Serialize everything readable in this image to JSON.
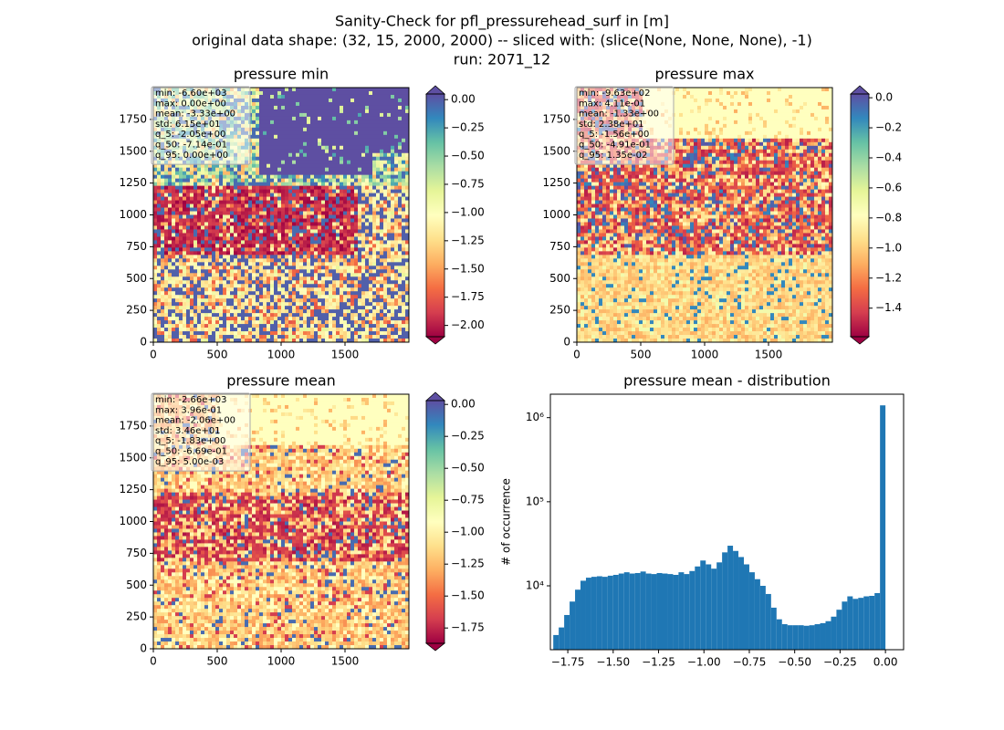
{
  "figure": {
    "title": [
      "Sanity-Check for pfl_pressurehead_surf in [m]",
      "original data shape: (32, 15, 2000, 2000) -- sliced with: (slice(None, None, None), -1)",
      "run: 2071_12"
    ]
  },
  "chart_data": [
    {
      "type": "heatmap",
      "title": "pressure min",
      "xlim": [
        0,
        2000
      ],
      "ylim": [
        0,
        2000
      ],
      "xticks": [
        0,
        500,
        1000,
        1500
      ],
      "yticks": [
        0,
        250,
        500,
        750,
        1000,
        1250,
        1500,
        1750
      ],
      "stats": [
        "min: -6.60e+03",
        "max: 0.00e+00",
        "mean: -3.33e+00",
        "std: 6.15e+01",
        "q_5: -2.05e+00",
        "q_50: -7.14e-01",
        "q_95: 0.00e+00"
      ],
      "colorbar": {
        "cmap": "Spectral",
        "clim": [
          -2.1,
          0.05
        ],
        "extend": "both",
        "ticks": [
          {
            "value": 0,
            "label": "0.00"
          },
          {
            "value": -0.25,
            "label": "−0.25"
          },
          {
            "value": -0.5,
            "label": "−0.50"
          },
          {
            "value": -0.75,
            "label": "−0.75"
          },
          {
            "value": -1,
            "label": "−1.00"
          },
          {
            "value": -1.25,
            "label": "−1.25"
          },
          {
            "value": -1.5,
            "label": "−1.50"
          },
          {
            "value": -1.75,
            "label": "−1.75"
          },
          {
            "value": -2,
            "label": "−2.00"
          }
        ]
      }
    },
    {
      "type": "heatmap",
      "title": "pressure max",
      "xlim": [
        0,
        2000
      ],
      "ylim": [
        0,
        2000
      ],
      "xticks": [
        0,
        500,
        1000,
        1500
      ],
      "yticks": [
        0,
        250,
        500,
        750,
        1000,
        1250,
        1500,
        1750
      ],
      "stats": [
        "min: -9.63e+02",
        "max: 4.11e-01",
        "mean: -1.33e+00",
        "std: 2.38e+01",
        "q_5: -1.56e+00",
        "q_50: -4.91e-01",
        "q_95: 1.35e-02"
      ],
      "colorbar": {
        "cmap": "Spectral",
        "clim": [
          -1.59,
          0.025
        ],
        "extend": "both",
        "ticks": [
          {
            "value": 0,
            "label": "0.0"
          },
          {
            "value": -0.2,
            "label": "−0.2"
          },
          {
            "value": -0.4,
            "label": "−0.4"
          },
          {
            "value": -0.6,
            "label": "−0.6"
          },
          {
            "value": -0.8,
            "label": "−0.8"
          },
          {
            "value": -1,
            "label": "−1.0"
          },
          {
            "value": -1.2,
            "label": "−1.2"
          },
          {
            "value": -1.4,
            "label": "−1.4"
          }
        ]
      }
    },
    {
      "type": "heatmap",
      "title": "pressure mean",
      "xlim": [
        0,
        2000
      ],
      "ylim": [
        0,
        2000
      ],
      "xticks": [
        0,
        500,
        1000,
        1500
      ],
      "yticks": [
        0,
        250,
        500,
        750,
        1000,
        1250,
        1500,
        1750
      ],
      "stats": [
        "min: -2.66e+03",
        "max: 3.96e-01",
        "mean: -2.06e+00",
        "std: 3.46e+01",
        "q_5: -1.83e+00",
        "q_50: -6.69e-01",
        "q_95: 5.00e-03"
      ],
      "colorbar": {
        "cmap": "Spectral",
        "clim": [
          -1.87,
          0.03
        ],
        "extend": "both",
        "ticks": [
          {
            "value": 0,
            "label": "0.00"
          },
          {
            "value": -0.25,
            "label": "−0.25"
          },
          {
            "value": -0.5,
            "label": "−0.50"
          },
          {
            "value": -0.75,
            "label": "−0.75"
          },
          {
            "value": -1,
            "label": "−1.00"
          },
          {
            "value": -1.25,
            "label": "−1.25"
          },
          {
            "value": -1.5,
            "label": "−1.50"
          },
          {
            "value": -1.75,
            "label": "−1.75"
          }
        ]
      }
    },
    {
      "type": "histogram",
      "title": "pressure mean - distribution",
      "ylabel": "# of occurrence",
      "color": "#1f77b4",
      "log_y": true,
      "xlim": [
        -1.846,
        0.1
      ],
      "ylim": [
        1740,
        1900000
      ],
      "xticks": [
        {
          "value": -1.75,
          "label": "−1.75"
        },
        {
          "value": -1.5,
          "label": "−1.50"
        },
        {
          "value": -1.25,
          "label": "−1.25"
        },
        {
          "value": -1,
          "label": "−1.00"
        },
        {
          "value": -0.75,
          "label": "−0.75"
        },
        {
          "value": -0.5,
          "label": "−0.50"
        },
        {
          "value": -0.25,
          "label": "−0.25"
        },
        {
          "value": 0,
          "label": "0.00"
        }
      ],
      "yticks": [
        {
          "value": 10000,
          "label": "10⁴"
        },
        {
          "value": 100000,
          "label": "10⁵"
        },
        {
          "value": 1000000,
          "label": "10⁶"
        }
      ],
      "bins": [
        -1.83,
        -1.8,
        -1.77,
        -1.74,
        -1.71,
        -1.68,
        -1.65,
        -1.62,
        -1.59,
        -1.56,
        -1.53,
        -1.5,
        -1.47,
        -1.44,
        -1.41,
        -1.38,
        -1.35,
        -1.32,
        -1.29,
        -1.26,
        -1.23,
        -1.2,
        -1.17,
        -1.14,
        -1.11,
        -1.08,
        -1.05,
        -1.02,
        -0.99,
        -0.96,
        -0.93,
        -0.9,
        -0.87,
        -0.84,
        -0.81,
        -0.78,
        -0.75,
        -0.72,
        -0.69,
        -0.66,
        -0.63,
        -0.6,
        -0.57,
        -0.54,
        -0.51,
        -0.48,
        -0.45,
        -0.42,
        -0.39,
        -0.36,
        -0.33,
        -0.3,
        -0.27,
        -0.24,
        -0.21,
        -0.18,
        -0.15,
        -0.12,
        -0.09,
        -0.06,
        -0.03,
        0.0
      ],
      "values": [
        2600,
        3200,
        4500,
        6500,
        9000,
        11500,
        12500,
        12800,
        13000,
        12800,
        13200,
        13500,
        14000,
        14500,
        14000,
        14200,
        14800,
        14000,
        13800,
        14200,
        14000,
        13800,
        13500,
        14500,
        13800,
        15000,
        17000,
        20000,
        18000,
        16000,
        19000,
        25000,
        30000,
        26000,
        22000,
        18000,
        14500,
        12000,
        10000,
        8000,
        5500,
        4000,
        3500,
        3400,
        3400,
        3400,
        3350,
        3400,
        3500,
        3600,
        3800,
        4300,
        5200,
        6500,
        7500,
        7000,
        7200,
        7500,
        7600,
        8200,
        1400000
      ]
    }
  ]
}
